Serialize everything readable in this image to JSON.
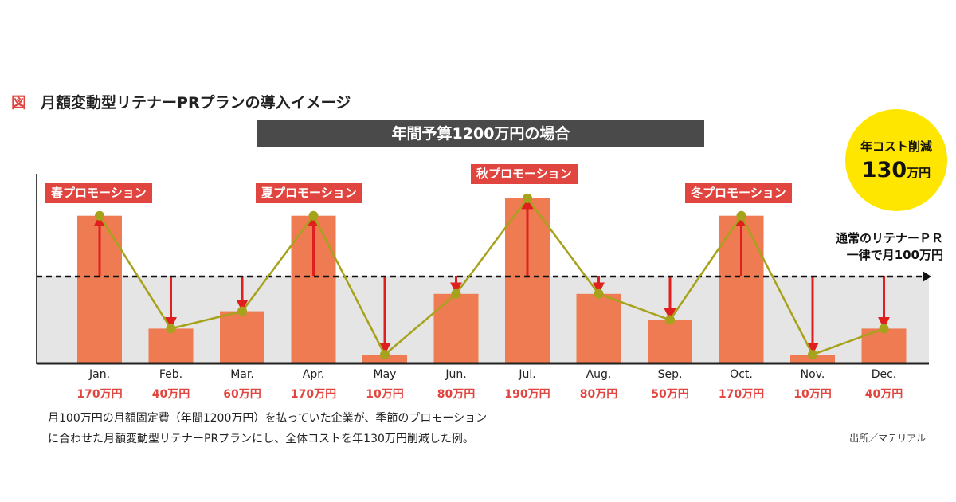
{
  "figure": {
    "label": "図",
    "title": "月額変動型リテナーPRプランの導入イメージ"
  },
  "banner": "年間予算1200万円の場合",
  "badge": {
    "line1": "年コスト削減",
    "amount": "130",
    "unit": "万円"
  },
  "baseline_label": {
    "line1": "通常のリテナーＰＲ",
    "line2": "一律で月100万円"
  },
  "promotions": [
    "春プロモーション",
    "夏プロモーション",
    "秋プロモーション",
    "冬プロモーション"
  ],
  "caption": {
    "line1": "月100万円の月額固定費（年間1200万円）を払っていた企業が、季節のプロモーション",
    "line2": "に合わせた月額変動型リテナーPRプランにし、全体コストを年130万円削減した例。"
  },
  "source": "出所／マテリアル",
  "colors": {
    "bar": "#ee7b51",
    "arrow": "#e01f1f",
    "line": "#a7a21b",
    "band": "#e5e5e5",
    "promo": "#e1453f",
    "badge": "#ffe600"
  },
  "chart_data": {
    "type": "bar",
    "categories": [
      "Jan.",
      "Feb.",
      "Mar.",
      "Apr.",
      "May",
      "Jun.",
      "Jul.",
      "Aug.",
      "Sep.",
      "Oct.",
      "Nov.",
      "Dec."
    ],
    "value_labels": [
      "170万円",
      "40万円",
      "60万円",
      "170万円",
      "10万円",
      "80万円",
      "190万円",
      "80万円",
      "50万円",
      "170万円",
      "10万円",
      "40万円"
    ],
    "series": [
      {
        "values": [
          170,
          40,
          60,
          170,
          10,
          80,
          190,
          80,
          50,
          170,
          10,
          40
        ]
      }
    ],
    "baseline": 100,
    "ylim": [
      0,
      210
    ],
    "unit": "万円",
    "overlay_line": "connects bar tops",
    "arrows": "from baseline 100 to each month value"
  }
}
